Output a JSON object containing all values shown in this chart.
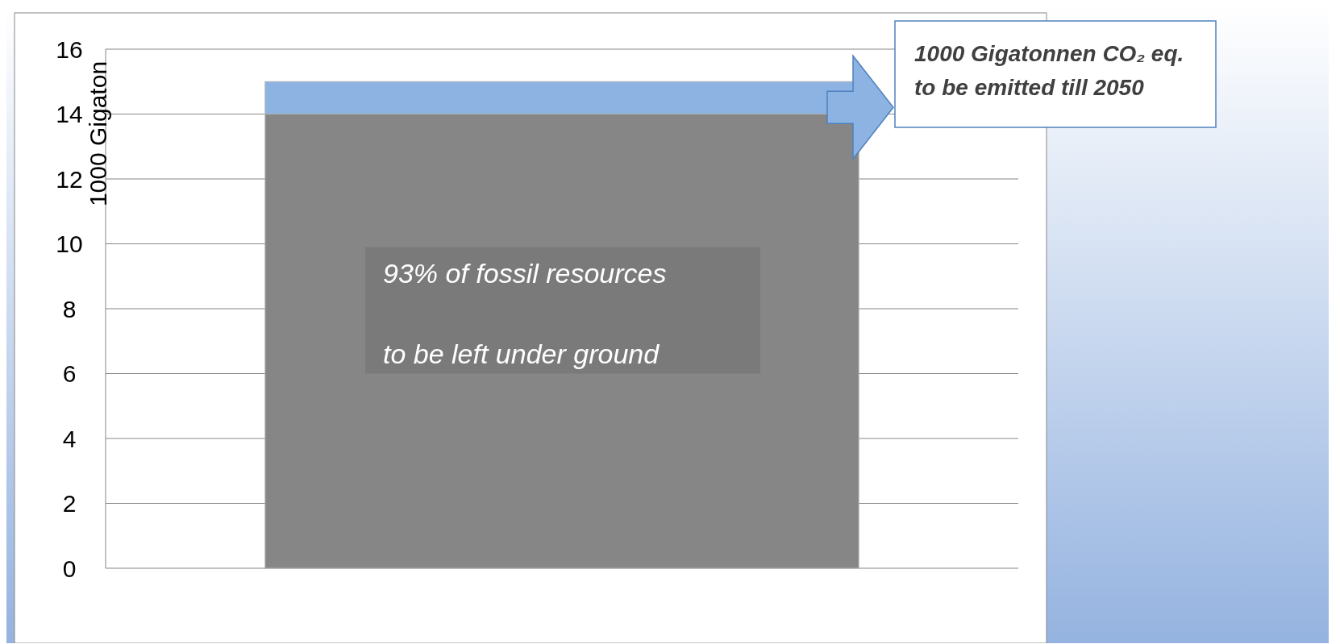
{
  "chart_data": {
    "type": "bar",
    "ylabel": "1000 Gigaton",
    "categories": [
      null
    ],
    "stacked": true,
    "series": [
      {
        "color": "#868686",
        "values": [
          14
        ]
      },
      {
        "color": "#8db3e2",
        "values": [
          1
        ]
      }
    ],
    "ylim": [
      0,
      16
    ],
    "yticks": [
      0,
      2,
      4,
      6,
      8,
      10,
      12,
      14,
      16
    ],
    "grid": "y",
    "annotations": [
      "93% of fossil resources to be left under ground",
      "1000 Gigatonnen CO₂ eq. to be emitted till 2050"
    ]
  }
}
